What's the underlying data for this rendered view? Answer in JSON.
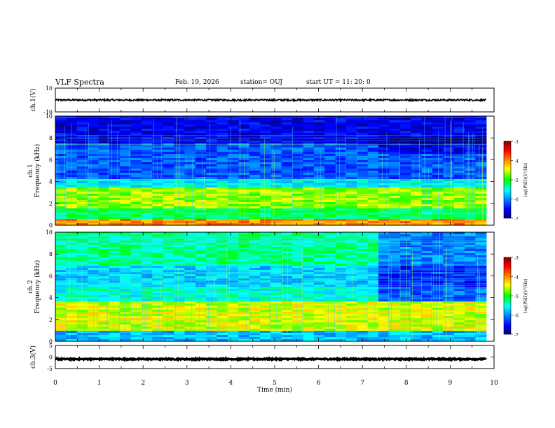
{
  "header": {
    "title": "VLF Spectra",
    "date": "Feb. 19, 2026",
    "station": "station= OUJ",
    "start": "start  UT =   11: 20: 0"
  },
  "chart_data": [
    {
      "type": "line",
      "panel": "ch1-waveform",
      "ylabel": "ch.1(V)",
      "ylim": [
        -10,
        10
      ],
      "yticks": [
        10,
        -10
      ],
      "xlim": [
        0,
        10
      ],
      "x_extent": [
        0,
        9.82
      ],
      "series": [
        {
          "mean": 0,
          "amplitude": 0.7,
          "color": "#000000"
        }
      ]
    },
    {
      "type": "heatmap",
      "panel": "ch1-spectrogram",
      "ylabel_top": "ch.1",
      "ylabel": "Frequency (kHz)",
      "ylim": [
        0,
        10
      ],
      "yticks": [
        0,
        2,
        4,
        6,
        8,
        10
      ],
      "xlim": [
        0,
        10
      ],
      "x_extent": [
        0,
        9.82
      ],
      "colorbar": {
        "label": "log(PSD)(V²/Hz)",
        "range": [
          -7,
          -3
        ],
        "ticks": [
          -3,
          -4,
          -5,
          -6,
          -7
        ]
      },
      "band_levels": [
        {
          "f0": 0,
          "f1": 0.6,
          "level": 0.75
        },
        {
          "f0": 0.6,
          "f1": 1.5,
          "level": 0.45
        },
        {
          "f0": 1.5,
          "f1": 3.4,
          "level": 0.58
        },
        {
          "f0": 3.4,
          "f1": 4.2,
          "level": 0.35
        },
        {
          "f0": 4.2,
          "f1": 7.5,
          "level": 0.2
        },
        {
          "f0": 7.5,
          "f1": 10,
          "level": 0.1
        }
      ]
    },
    {
      "type": "heatmap",
      "panel": "ch2-spectrogram",
      "ylabel_top": "ch.2",
      "ylabel": "Frequency (kHz)",
      "ylim": [
        0,
        10
      ],
      "yticks": [
        0,
        2,
        4,
        6,
        8,
        10
      ],
      "xlim": [
        0,
        10
      ],
      "x_extent": [
        0,
        9.82
      ],
      "change_time": 7.4,
      "colorbar": {
        "label": "log(PSD)(V²/Hz)",
        "range": [
          -7,
          -3
        ],
        "ticks": [
          -3,
          -4,
          -5,
          -6,
          -7
        ]
      },
      "band_levels": [
        {
          "f0": 0,
          "f1": 1.0,
          "level": 0.3
        },
        {
          "f0": 1.0,
          "f1": 3.6,
          "level": 0.62
        },
        {
          "f0": 3.6,
          "f1": 5.0,
          "level": 0.38
        },
        {
          "f0": 5.0,
          "f1": 7.0,
          "level": 0.32
        },
        {
          "f0": 7.0,
          "f1": 10,
          "level": 0.42
        }
      ]
    },
    {
      "type": "line",
      "panel": "ch3-waveform",
      "ylabel": "ch.3(V)",
      "ylim": [
        -5,
        5
      ],
      "yticks": [
        5,
        0,
        -5
      ],
      "xlim": [
        0,
        10
      ],
      "x_extent": [
        0,
        9.82
      ],
      "series": [
        {
          "mean": -0.9,
          "amplitude": 0.25,
          "color": "#000000"
        }
      ]
    }
  ],
  "xaxis": {
    "label": "Time (min)",
    "ticks": [
      0,
      1,
      2,
      3,
      4,
      5,
      6,
      7,
      8,
      9,
      10
    ]
  }
}
